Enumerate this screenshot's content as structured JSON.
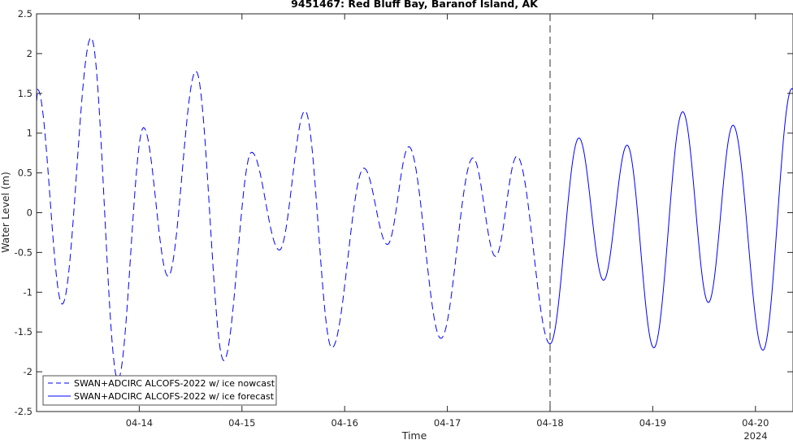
{
  "chart_data": {
    "type": "line",
    "title": "9451467: Red Bluff Bay, Baranof Island, AK",
    "xlabel": "Time",
    "ylabel": "Water Level (m)",
    "year_label": "2024",
    "x_tick_labels": [
      "04-14",
      "04-15",
      "04-16",
      "04-17",
      "04-18",
      "04-19",
      "04-20"
    ],
    "y_tick_labels": [
      "-2.5",
      "-2",
      "-1.5",
      "-1",
      "-0.5",
      "0",
      "0.5",
      "1",
      "1.5",
      "2",
      "2.5"
    ],
    "ylim": [
      -2.5,
      2.5
    ],
    "grid": false,
    "legend_position": "bottom-left",
    "nowcast_end": "04-18 00:00",
    "series_color": "#0000ff",
    "series": [
      {
        "name": "SWAN+ADCIRC ALCOFS-2022 w/ ice nowcast",
        "style": "dashed",
        "points": [
          [
            "04-13 00:00",
            1.4
          ],
          [
            "04-13 00:15",
            1.55
          ],
          [
            "04-13 06:00",
            -1.15
          ],
          [
            "04-13 12:45",
            2.2
          ],
          [
            "04-13 19:00",
            -2.1
          ],
          [
            "04-14 01:00",
            1.07
          ],
          [
            "04-14 06:45",
            -0.8
          ],
          [
            "04-14 13:15",
            1.78
          ],
          [
            "04-14 19:45",
            -1.86
          ],
          [
            "04-15 02:15",
            0.76
          ],
          [
            "04-15 08:45",
            -0.47
          ],
          [
            "04-15 14:45",
            1.28
          ],
          [
            "04-15 21:00",
            -1.7
          ],
          [
            "04-16 04:30",
            0.56
          ],
          [
            "04-16 10:00",
            -0.4
          ],
          [
            "04-16 15:00",
            0.83
          ],
          [
            "04-16 22:30",
            -1.58
          ],
          [
            "04-17 06:00",
            0.69
          ],
          [
            "04-17 11:15",
            -0.55
          ],
          [
            "04-17 16:15",
            0.71
          ],
          [
            "04-18 00:00",
            -1.65
          ]
        ]
      },
      {
        "name": "SWAN+ADCIRC ALCOFS-2022 w/ ice forecast",
        "style": "solid",
        "points": [
          [
            "04-18 00:00",
            -1.65
          ],
          [
            "04-18 06:45",
            0.94
          ],
          [
            "04-18 12:30",
            -0.85
          ],
          [
            "04-18 18:00",
            0.85
          ],
          [
            "04-19 00:15",
            -1.7
          ],
          [
            "04-19 07:00",
            1.27
          ],
          [
            "04-19 13:00",
            -1.13
          ],
          [
            "04-19 18:45",
            1.1
          ],
          [
            "04-20 01:45",
            -1.73
          ],
          [
            "04-20 08:30",
            1.56
          ],
          [
            "04-20 10:30",
            1.33
          ]
        ]
      }
    ]
  }
}
